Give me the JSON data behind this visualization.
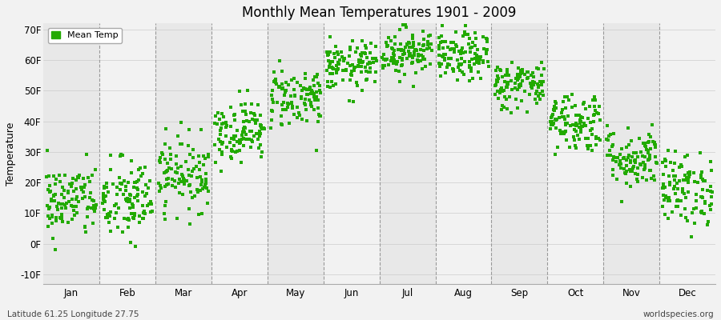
{
  "title": "Monthly Mean Temperatures 1901 - 2009",
  "ylabel": "Temperature",
  "xlabel": "",
  "subtitle_left": "Latitude 61.25 Longitude 27.75",
  "subtitle_right": "worldspecies.org",
  "legend_label": "Mean Temp",
  "months": [
    "Jan",
    "Feb",
    "Mar",
    "Apr",
    "May",
    "Jun",
    "Jul",
    "Aug",
    "Sep",
    "Oct",
    "Nov",
    "Dec"
  ],
  "ylim": [
    -13,
    72
  ],
  "yticks": [
    -10,
    0,
    10,
    20,
    30,
    40,
    50,
    60,
    70
  ],
  "ytick_labels": [
    "-10F",
    "0F",
    "10F",
    "20F",
    "30F",
    "40F",
    "50F",
    "60F",
    "70F"
  ],
  "n_years": 109,
  "dot_color": "#22aa00",
  "dot_size": 8,
  "background_color": "#f2f2f2",
  "band_colors": [
    "#e8e8e8",
    "#f2f2f2"
  ],
  "monthly_mean_temps_F": [
    14,
    14,
    23,
    37,
    48,
    58,
    63,
    61,
    52,
    40,
    28,
    18
  ],
  "monthly_std_F": [
    6,
    7,
    6,
    5,
    5,
    4,
    4,
    4,
    4,
    5,
    5,
    6
  ]
}
